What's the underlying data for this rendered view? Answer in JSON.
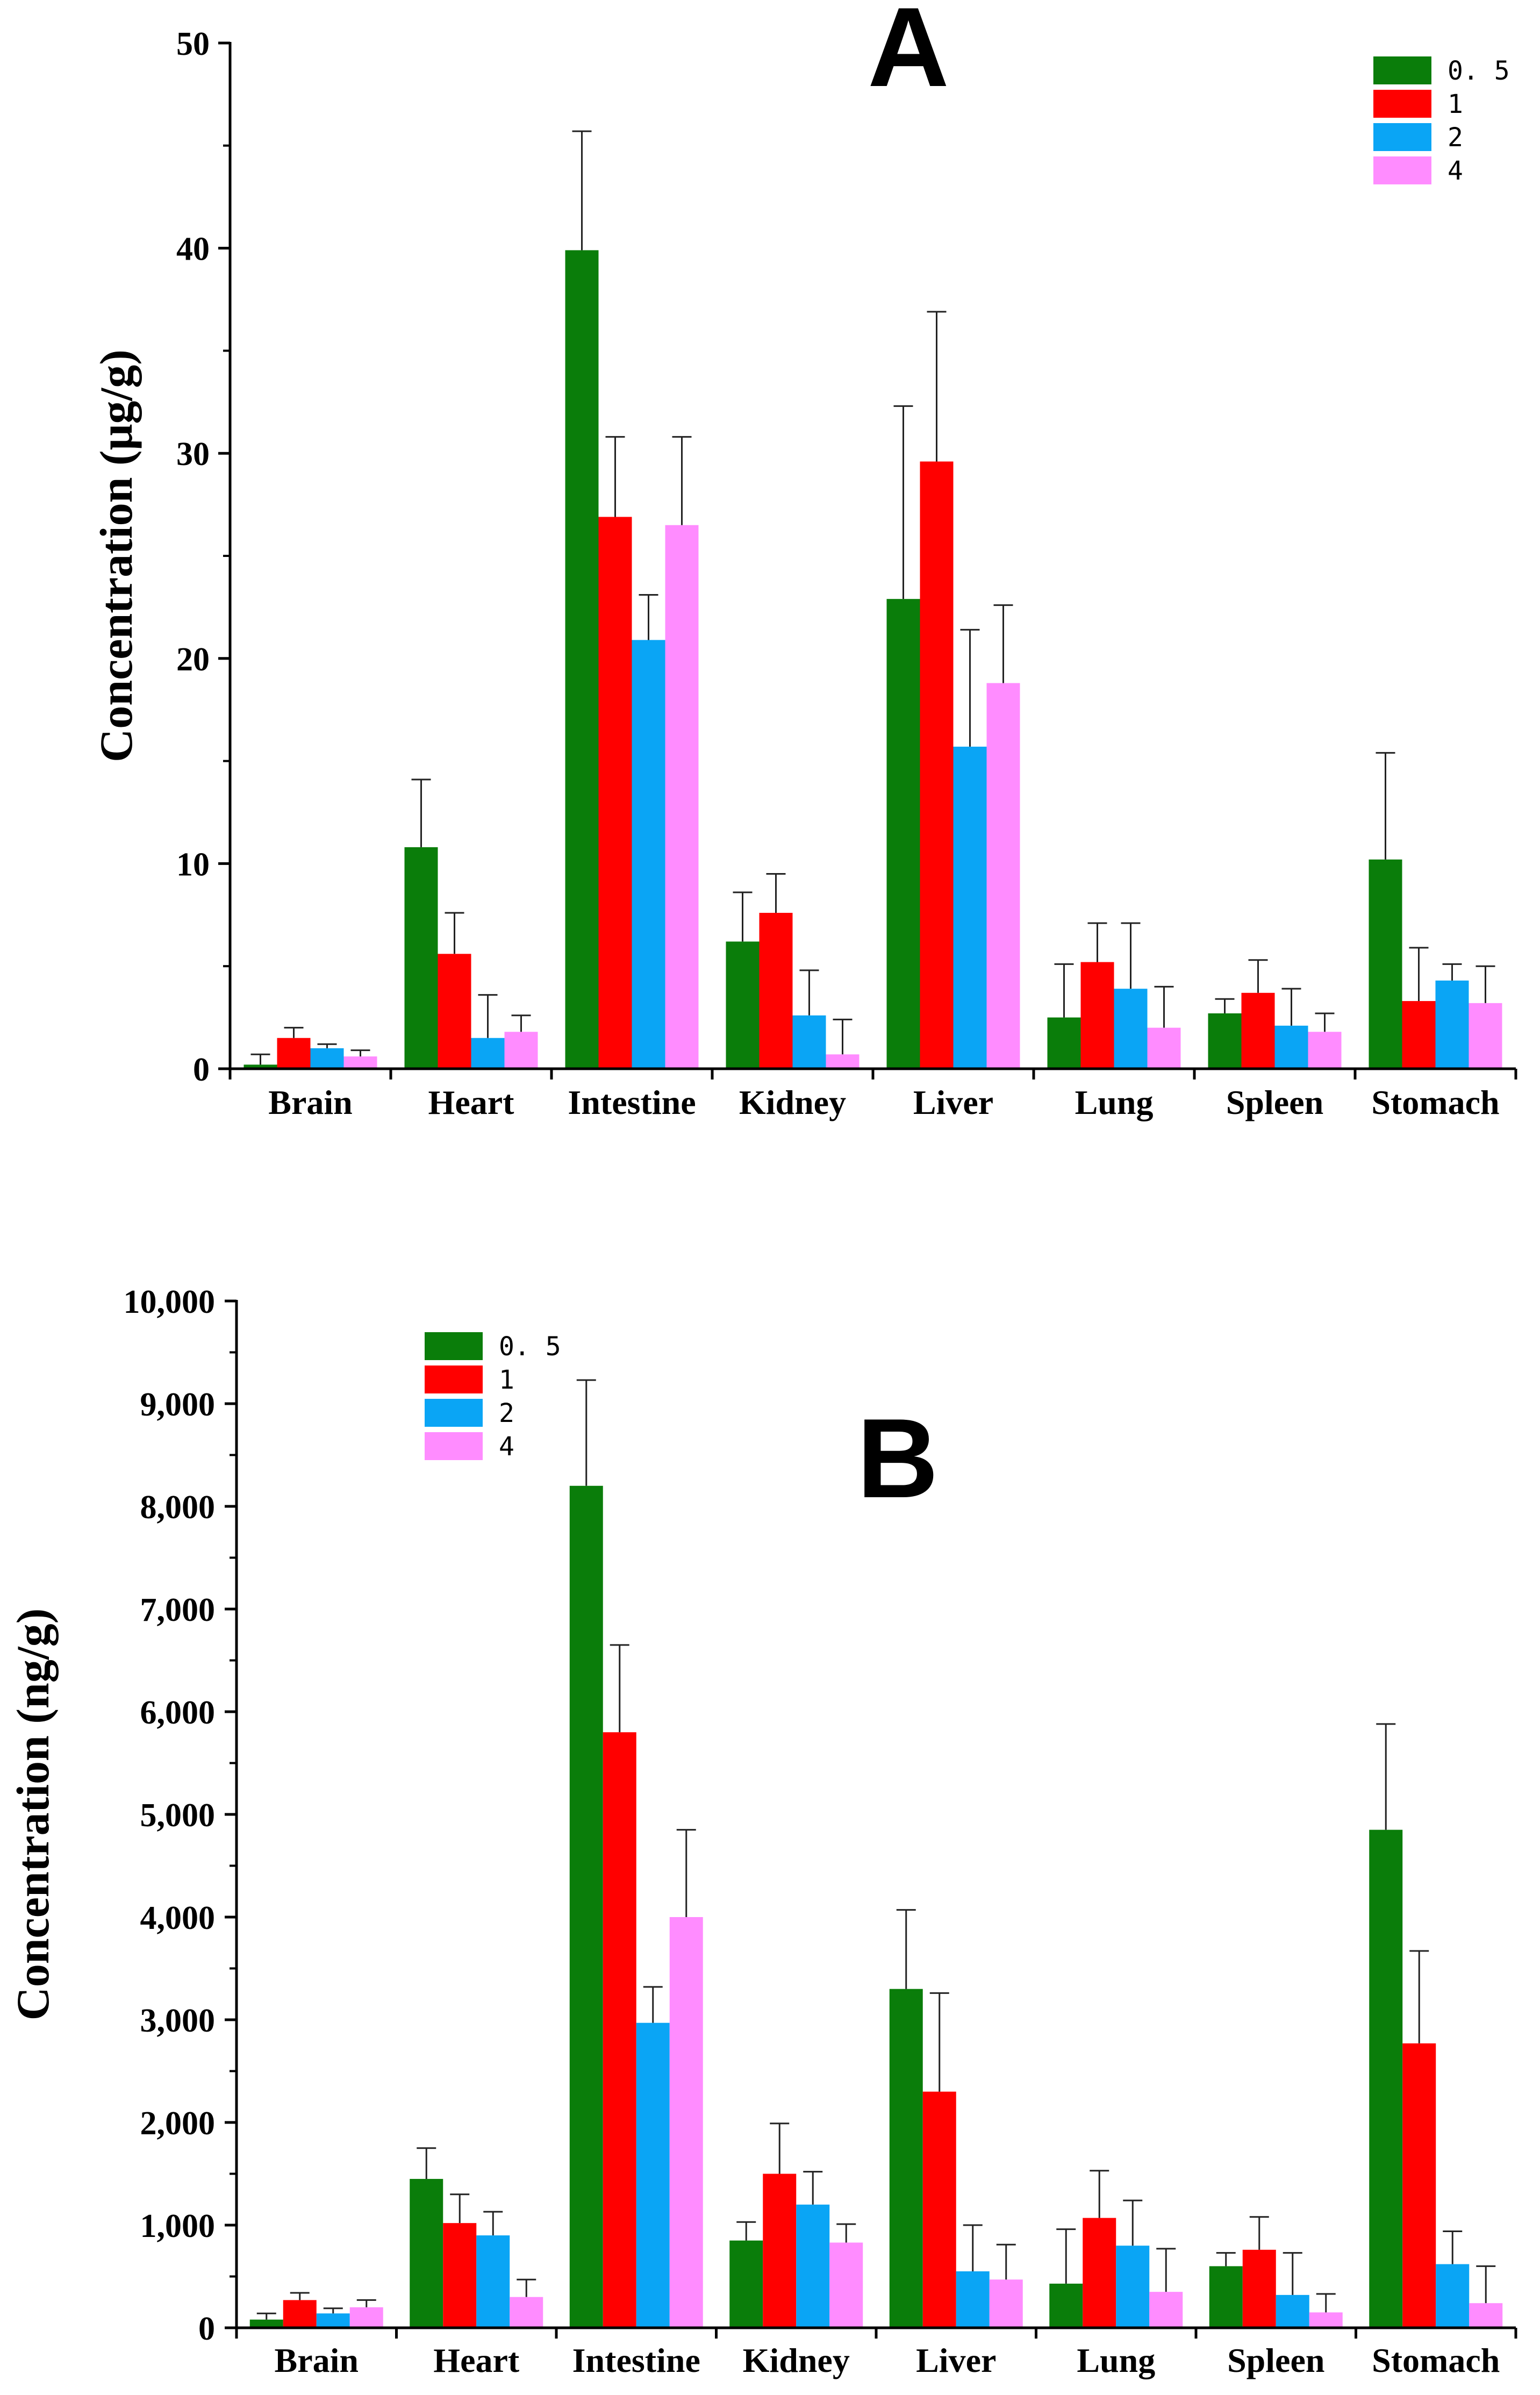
{
  "colors": {
    "series": [
      "#0a7d0a",
      "#ff0000",
      "#0aa5f5",
      "#ff8cff"
    ],
    "axis": "#000000",
    "error_bar": "#222222"
  },
  "chart_data": [
    {
      "type": "bar",
      "panel_label": "A",
      "ylabel": "Concentration (μg/g)",
      "xlabel": "",
      "ylim": [
        0,
        50
      ],
      "yticks": [
        0,
        10,
        20,
        30,
        40,
        50
      ],
      "ytick_labels": [
        "0",
        "10",
        "20",
        "30",
        "40",
        "50"
      ],
      "categories": [
        "Brain",
        "Heart",
        "Intestine",
        "Kidney",
        "Liver",
        "Lung",
        "Spleen",
        "Stomach"
      ],
      "legend_position": "top-right",
      "series": [
        {
          "name": "0. 5",
          "values": [
            0.2,
            10.8,
            39.9,
            6.2,
            22.9,
            2.5,
            2.7,
            10.2
          ],
          "errors": [
            0.5,
            3.3,
            5.8,
            2.4,
            9.4,
            2.6,
            0.7,
            5.2
          ]
        },
        {
          "name": "1",
          "values": [
            1.5,
            5.6,
            26.9,
            7.6,
            29.6,
            5.2,
            3.7,
            3.3
          ],
          "errors": [
            0.5,
            2.0,
            3.9,
            1.9,
            7.3,
            1.9,
            1.6,
            2.6
          ]
        },
        {
          "name": "2",
          "values": [
            1.0,
            1.5,
            20.9,
            2.6,
            15.7,
            3.9,
            2.1,
            4.3
          ],
          "errors": [
            0.2,
            2.1,
            2.2,
            2.2,
            5.7,
            3.2,
            1.8,
            0.8
          ]
        },
        {
          "name": "4",
          "values": [
            0.6,
            1.8,
            26.5,
            0.7,
            18.8,
            2.0,
            1.8,
            3.2
          ],
          "errors": [
            0.3,
            0.8,
            4.3,
            1.7,
            3.8,
            2.0,
            0.9,
            1.8
          ]
        }
      ]
    },
    {
      "type": "bar",
      "panel_label": "B",
      "ylabel": "Concentration (ng/g)",
      "xlabel": "",
      "ylim": [
        0,
        10000
      ],
      "yticks": [
        0,
        1000,
        2000,
        3000,
        4000,
        5000,
        6000,
        7000,
        8000,
        9000,
        10000
      ],
      "ytick_labels": [
        "0",
        "1,000",
        "2,000",
        "3,000",
        "4,000",
        "5,000",
        "6,000",
        "7,000",
        "8,000",
        "9,000",
        "10,000"
      ],
      "categories": [
        "Brain",
        "Heart",
        "Intestine",
        "Kidney",
        "Liver",
        "Lung",
        "Spleen",
        "Stomach"
      ],
      "legend_position": "top-left",
      "series": [
        {
          "name": "0. 5",
          "values": [
            80,
            1450,
            8200,
            850,
            3300,
            430,
            600,
            4850
          ],
          "errors": [
            60,
            300,
            1030,
            180,
            770,
            530,
            130,
            1030
          ]
        },
        {
          "name": "1",
          "values": [
            270,
            1020,
            5800,
            1500,
            2300,
            1070,
            760,
            2770
          ],
          "errors": [
            70,
            280,
            850,
            490,
            960,
            460,
            320,
            900
          ]
        },
        {
          "name": "2",
          "values": [
            140,
            900,
            2970,
            1200,
            550,
            800,
            320,
            620
          ],
          "errors": [
            50,
            230,
            350,
            320,
            450,
            440,
            410,
            320
          ]
        },
        {
          "name": "4",
          "values": [
            200,
            300,
            4000,
            830,
            470,
            350,
            150,
            240
          ],
          "errors": [
            70,
            170,
            850,
            180,
            340,
            420,
            180,
            360
          ]
        }
      ]
    }
  ]
}
